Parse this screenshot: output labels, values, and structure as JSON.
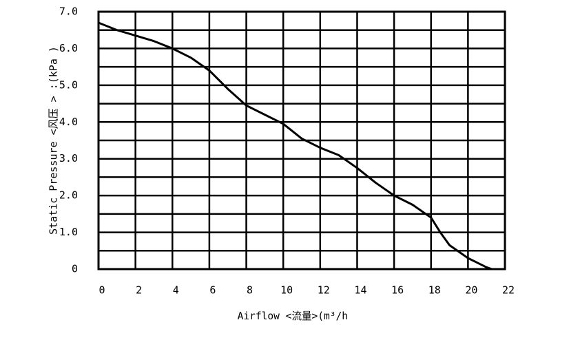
{
  "chart_data": {
    "type": "line",
    "xlabel": "Airflow <流量>(m³/h",
    "ylabel": "Static  Pressure  <风压 > :(kPa )",
    "x": [
      0,
      1,
      2,
      3,
      4,
      5,
      6,
      7,
      8,
      9,
      10,
      11,
      12,
      13,
      14,
      15,
      16,
      17,
      18,
      18.5,
      19,
      20,
      21,
      21.3
    ],
    "values": [
      6.7,
      6.5,
      6.35,
      6.2,
      6.0,
      5.75,
      5.4,
      4.9,
      4.45,
      4.2,
      3.95,
      3.55,
      3.3,
      3.1,
      2.75,
      2.35,
      2.0,
      1.75,
      1.4,
      1.0,
      0.65,
      0.3,
      0.05,
      0
    ],
    "color": "#000000",
    "xlim": [
      0,
      22
    ],
    "xticks": [
      0,
      2,
      4,
      6,
      8,
      10,
      12,
      14,
      16,
      18,
      20,
      22
    ],
    "ylim": [
      0,
      7
    ],
    "yticks": [
      0,
      {
        "value": 1,
        "label": "1.0"
      },
      {
        "value": 2,
        "label": "2.0"
      },
      {
        "value": 3,
        "label": "3.0"
      },
      {
        "value": 4,
        "label": "4.0"
      },
      {
        "value": 5,
        "label": "5.0"
      },
      {
        "value": 6,
        "label": "6.0"
      },
      {
        "value": 7,
        "label": "7.0"
      }
    ],
    "minor_yticks": [
      0.5,
      1.5,
      2.5,
      3.5,
      4.5,
      5.5,
      6.5
    ],
    "grid": true
  }
}
